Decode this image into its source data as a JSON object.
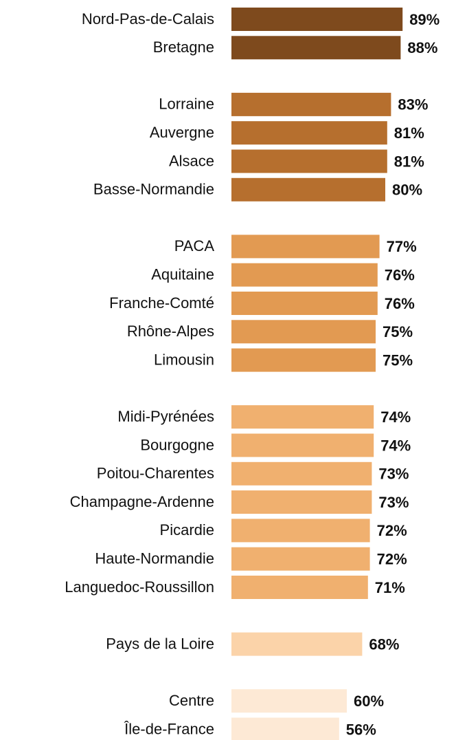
{
  "chart_data": {
    "type": "bar",
    "orientation": "horizontal",
    "categories": [
      "Nord-Pas-de-Calais",
      "Bretagne",
      null,
      "Lorraine",
      "Auvergne",
      "Alsace",
      "Basse-Normandie",
      null,
      "PACA",
      "Aquitaine",
      "Franche-Comté",
      "Rhône-Alpes",
      "Limousin",
      null,
      "Midi-Pyrénées",
      "Bourgogne",
      "Poitou-Charentes",
      "Champagne-Ardenne",
      "Picardie",
      "Haute-Normandie",
      "Languedoc-Roussillon",
      null,
      "Pays de la Loire",
      null,
      "Centre",
      "Île-de-France"
    ],
    "values": [
      89,
      88,
      null,
      83,
      81,
      81,
      80,
      null,
      77,
      76,
      76,
      75,
      75,
      null,
      74,
      74,
      73,
      73,
      72,
      72,
      71,
      null,
      68,
      null,
      60,
      56
    ],
    "value_labels": [
      "89%",
      "88%",
      null,
      "83%",
      "81%",
      "81%",
      "80%",
      null,
      "77%",
      "76%",
      "76%",
      "75%",
      "75%",
      null,
      "74%",
      "74%",
      "73%",
      "73%",
      "72%",
      "72%",
      "71%",
      null,
      "68%",
      null,
      "60%",
      "56%"
    ],
    "colors": [
      "#7e4a1d",
      "#7e4a1d",
      null,
      "#b66f2e",
      "#b66f2e",
      "#b66f2e",
      "#b66f2e",
      null,
      "#e29a52",
      "#e29a52",
      "#e29a52",
      "#e29a52",
      "#e29a52",
      null,
      "#f0b06f",
      "#f0b06f",
      "#f0b06f",
      "#f0b06f",
      "#f0b06f",
      "#f0b06f",
      "#f0b06f",
      null,
      "#fbd3a9",
      null,
      "#fde9d5",
      "#fde9d5"
    ]
  }
}
